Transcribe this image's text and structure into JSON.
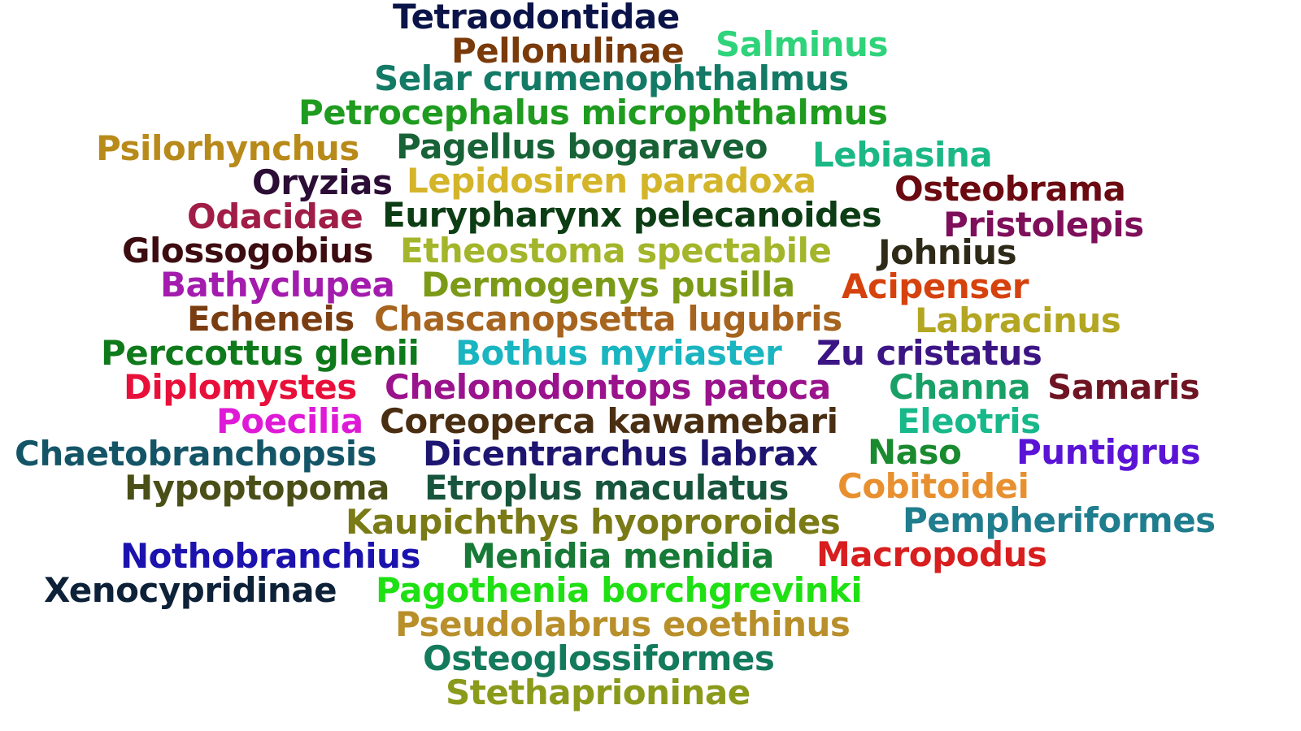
{
  "words": [
    {
      "text": "Tetraodontidae",
      "color": "#0b1448"
    },
    {
      "text": "Pellonulinae",
      "color": "#7a3a0a"
    },
    {
      "text": "Salminus",
      "color": "#2ed37a"
    },
    {
      "text": "Selar crumenophthalmus",
      "color": "#137a66"
    },
    {
      "text": "Petrocephalus microphthalmus",
      "color": "#1f9b1f"
    },
    {
      "text": "Psilorhynchus",
      "color": "#b88a1a"
    },
    {
      "text": "Pagellus bogaraveo",
      "color": "#176236"
    },
    {
      "text": "Lebiasina",
      "color": "#1bb886"
    },
    {
      "text": "Oryzias",
      "color": "#2b0d36"
    },
    {
      "text": "Lepidosiren paradoxa",
      "color": "#d4b52a"
    },
    {
      "text": "Osteobrama",
      "color": "#6b0a10"
    },
    {
      "text": "Odacidae",
      "color": "#a01d47"
    },
    {
      "text": "Eurypharynx pelecanoides",
      "color": "#0c3d14"
    },
    {
      "text": "Pristolepis",
      "color": "#7e0f5a"
    },
    {
      "text": "Glossogobius",
      "color": "#3d0c10"
    },
    {
      "text": "Etheostoma spectabile",
      "color": "#a3b52a"
    },
    {
      "text": "Johnius",
      "color": "#2e2a18"
    },
    {
      "text": "Bathyclupea",
      "color": "#a31cae"
    },
    {
      "text": "Dermogenys pusilla",
      "color": "#7b9a17"
    },
    {
      "text": "Acipenser",
      "color": "#d6420e"
    },
    {
      "text": "Echeneis",
      "color": "#7a3d12"
    },
    {
      "text": "Chascanopsetta lugubris",
      "color": "#a6641f"
    },
    {
      "text": "Labracinus",
      "color": "#b3a622"
    },
    {
      "text": "Perccottus glenii",
      "color": "#0f7a1b"
    },
    {
      "text": "Bothus myriaster",
      "color": "#19b5c0"
    },
    {
      "text": "Zu cristatus",
      "color": "#3c1585"
    },
    {
      "text": "Diplomystes",
      "color": "#e8103a"
    },
    {
      "text": "Chelonodontops patoca",
      "color": "#9a138c"
    },
    {
      "text": "Channa",
      "color": "#19a067"
    },
    {
      "text": "Samaris",
      "color": "#6e1422"
    },
    {
      "text": "Poecilia",
      "color": "#df1ad7"
    },
    {
      "text": "Coreoperca kawamebari",
      "color": "#4a2e12"
    },
    {
      "text": "Eleotris",
      "color": "#17b88a"
    },
    {
      "text": "Chaetobranchopsis",
      "color": "#135566"
    },
    {
      "text": "Dicentrarchus labrax",
      "color": "#1d1570"
    },
    {
      "text": "Naso",
      "color": "#1a8a2f"
    },
    {
      "text": "Puntigrus",
      "color": "#5a14d6"
    },
    {
      "text": "Hypoptopoma",
      "color": "#4a4f17"
    },
    {
      "text": "Etroplus maculatus",
      "color": "#17553c"
    },
    {
      "text": "Cobitoidei",
      "color": "#e89030"
    },
    {
      "text": "Kaupichthys hyoproroides",
      "color": "#7a7a17"
    },
    {
      "text": "Pempheriformes",
      "color": "#1f7d8e"
    },
    {
      "text": "Nothobranchius",
      "color": "#1c13ae"
    },
    {
      "text": "Menidia menidia",
      "color": "#177a36"
    },
    {
      "text": "Macropodus",
      "color": "#d81e1e"
    },
    {
      "text": "Xenocypridinae",
      "color": "#0d2138"
    },
    {
      "text": "Pagothenia borchgrevinki",
      "color": "#1ee012"
    },
    {
      "text": "Pseudolabrus eoethinus",
      "color": "#b88f2a"
    },
    {
      "text": "Osteoglossiformes",
      "color": "#137a5c"
    },
    {
      "text": "Stethaprioninae",
      "color": "#8a9a1a"
    }
  ]
}
